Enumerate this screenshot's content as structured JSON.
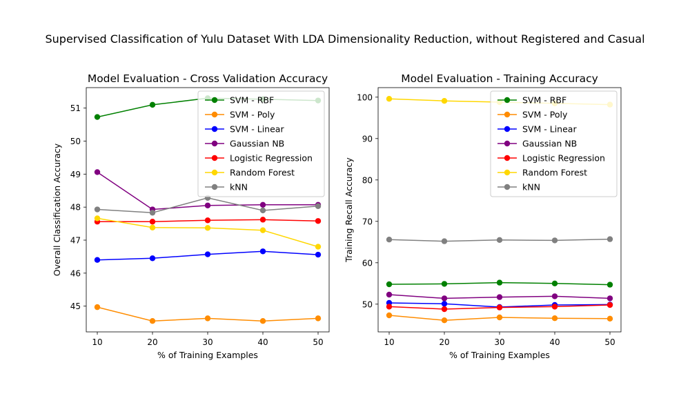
{
  "figure": {
    "suptitle": "Supervised Classification of Yulu Dataset With LDA Dimensionality Reduction, without Registered and Casual"
  },
  "chart_data": [
    {
      "type": "line",
      "title": "Model Evaluation - Cross Validation Accuracy",
      "xlabel": "% of Training Examples",
      "ylabel": "Overall Classification Accuracy",
      "x": [
        10,
        20,
        30,
        40,
        50
      ],
      "xticks": [
        10,
        20,
        30,
        40,
        50
      ],
      "yticks": [
        45,
        46,
        47,
        48,
        49,
        50,
        51
      ],
      "xlim": [
        8,
        52
      ],
      "ylim": [
        44.22,
        51.62
      ],
      "grid": false,
      "legend_position": "upper right",
      "series": [
        {
          "name": "SVM - RBF",
          "color": "#008000",
          "values": [
            50.73,
            51.1,
            51.3,
            51.27,
            51.23
          ]
        },
        {
          "name": "SVM - Poly",
          "color": "#ff8c00",
          "values": [
            44.97,
            44.55,
            44.63,
            44.55,
            44.63
          ]
        },
        {
          "name": "SVM - Linear",
          "color": "#0000ff",
          "values": [
            46.4,
            46.45,
            46.57,
            46.66,
            46.56
          ]
        },
        {
          "name": "Gaussian NB",
          "color": "#800080",
          "values": [
            49.06,
            47.93,
            48.05,
            48.07,
            48.07
          ]
        },
        {
          "name": "Logistic Regression",
          "color": "#ff0000",
          "values": [
            47.56,
            47.56,
            47.6,
            47.62,
            47.58
          ]
        },
        {
          "name": "Random Forest",
          "color": "#ffd700",
          "values": [
            47.66,
            47.38,
            47.37,
            47.3,
            46.8
          ]
        },
        {
          "name": "kNN",
          "color": "#808080",
          "values": [
            47.93,
            47.83,
            48.28,
            47.9,
            48.03
          ]
        }
      ]
    },
    {
      "type": "line",
      "title": "Model Evaluation - Training Accuracy",
      "xlabel": "% of Training Examples",
      "ylabel": "Training Recall Accuracy",
      "x": [
        10,
        20,
        30,
        40,
        50
      ],
      "xticks": [
        10,
        20,
        30,
        40,
        50
      ],
      "yticks": [
        50,
        60,
        70,
        80,
        90,
        100
      ],
      "xlim": [
        8,
        52
      ],
      "ylim": [
        43.3,
        102.3
      ],
      "grid": false,
      "legend_position": "upper right",
      "series": [
        {
          "name": "SVM - RBF",
          "color": "#008000",
          "values": [
            54.8,
            54.9,
            55.2,
            55.0,
            54.7
          ]
        },
        {
          "name": "SVM - Poly",
          "color": "#ff8c00",
          "values": [
            47.3,
            46.1,
            46.8,
            46.6,
            46.5
          ]
        },
        {
          "name": "SVM - Linear",
          "color": "#0000ff",
          "values": [
            50.3,
            50.1,
            49.3,
            49.8,
            49.9
          ]
        },
        {
          "name": "Gaussian NB",
          "color": "#800080",
          "values": [
            52.3,
            51.4,
            51.7,
            51.9,
            51.4
          ]
        },
        {
          "name": "Logistic Regression",
          "color": "#ff0000",
          "values": [
            49.4,
            48.8,
            49.2,
            49.4,
            49.8
          ]
        },
        {
          "name": "Random Forest",
          "color": "#ffd700",
          "values": [
            99.6,
            99.1,
            98.8,
            98.5,
            98.2
          ]
        },
        {
          "name": "kNN",
          "color": "#808080",
          "values": [
            65.6,
            65.2,
            65.5,
            65.4,
            65.7
          ]
        }
      ]
    }
  ]
}
